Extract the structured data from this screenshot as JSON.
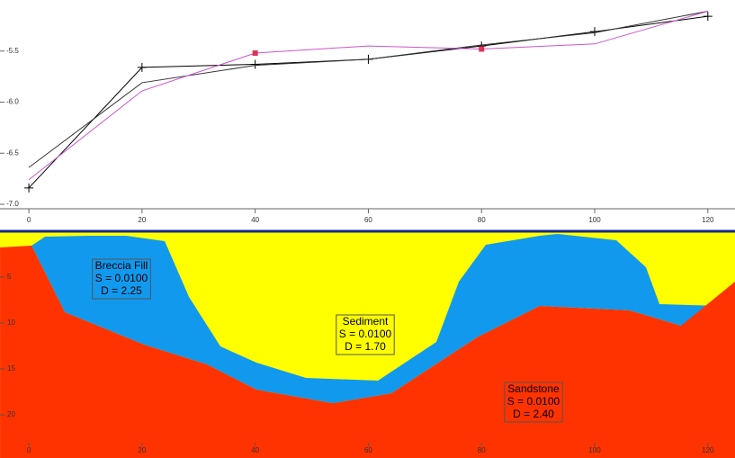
{
  "chart_data": [
    {
      "type": "line",
      "x": [
        0,
        20,
        40,
        60,
        80,
        100,
        120
      ],
      "series": [
        {
          "color": "#000000",
          "marker": "plus",
          "values": [
            -6.84,
            -5.66,
            -5.63,
            -5.58,
            -5.45,
            -5.31,
            -5.16
          ]
        },
        {
          "color": "#333333",
          "values": [
            -6.64,
            -5.81,
            -5.64,
            -5.58,
            -5.44,
            -5.32,
            -5.11
          ]
        },
        {
          "color": "#cc55cc",
          "values": [
            -6.76,
            -5.89,
            -5.52,
            -5.45,
            -5.48,
            -5.43,
            -5.11
          ]
        },
        {
          "color": "#dd3355",
          "marker": "square",
          "x": [
            40,
            80
          ],
          "values": [
            -5.52,
            -5.48
          ]
        }
      ],
      "xlim": [
        -5.1,
        124.8
      ],
      "xticks": [
        0,
        20,
        40,
        60,
        80,
        100,
        120
      ],
      "ylim": [
        -7.0,
        -5.0
      ],
      "yticks": [
        -5.5,
        {
          "value": -6,
          "label": "-6.0"
        },
        -6.5,
        {
          "value": -7,
          "label": "-7.0"
        }
      ]
    },
    {
      "type": "polygon",
      "xlim": [
        -5.1,
        124.8
      ],
      "xticks": [
        0,
        20,
        40,
        60,
        80,
        100,
        120
      ],
      "ylim": [
        0,
        24.7
      ],
      "yticks": [
        5,
        10,
        15,
        20
      ],
      "bodies": [
        {
          "name": "Sediment",
          "color": "#ffff00",
          "lines": [
            "S = 0.0100",
            "D =  1.70"
          ],
          "x": [
            -5.1,
            124.8,
            124.8,
            -5.1
          ],
          "y": [
            0,
            0,
            24.7,
            24.7
          ]
        },
        {
          "name": "Breccia Fill",
          "color": "#1199ee",
          "lines": [
            "S = 0.0100",
            "D =  2.25"
          ],
          "x": [
            0.48,
            2.86,
            10.81,
            17.17,
            24.01,
            28.3,
            33.86,
            40.22,
            48.97,
            61.69,
            72.02,
            76.0,
            80.76,
            90.3,
            93.48,
            103.82,
            109.06,
            111.45,
            122.1,
            115.26,
            106.2,
            90.3,
            79.17,
            64.07,
            53.74,
            40.22,
            31.48,
            20.35,
            6.36
          ],
          "y": [
            1.57,
            0.59,
            0.49,
            0.49,
            1.08,
            7.16,
            12.55,
            14.31,
            15.98,
            16.27,
            12.06,
            5.49,
            1.47,
            0.49,
            0.29,
            0.98,
            3.92,
            7.94,
            8.14,
            10.29,
            8.63,
            8.14,
            11.57,
            17.65,
            18.73,
            17.25,
            14.51,
            12.35,
            8.82
          ]
        },
        {
          "name": "Sandstone",
          "color": "#ff3300",
          "lines": [
            "S = 0.0100",
            "D =  2.40"
          ],
          "x": [
            -5.09,
            0.48,
            6.36,
            20.35,
            31.48,
            40.22,
            53.74,
            64.07,
            79.17,
            90.3,
            106.2,
            115.26,
            124.8,
            124.8,
            -5.09
          ],
          "y": [
            1.76,
            1.57,
            8.82,
            12.35,
            14.51,
            17.25,
            18.73,
            17.65,
            11.57,
            8.14,
            8.63,
            10.29,
            5.49,
            24.71,
            24.71
          ]
        }
      ]
    }
  ]
}
